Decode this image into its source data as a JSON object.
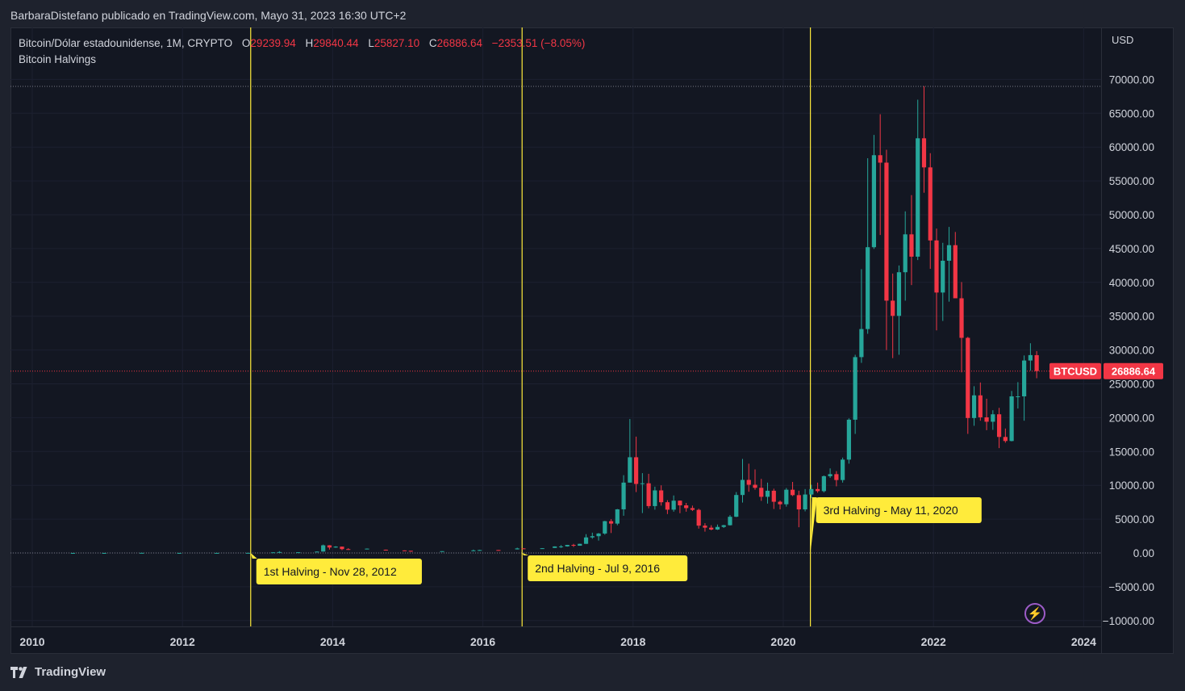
{
  "header": {
    "publisher": "BarbaraDistefano publicado en TradingView.com, Mayo 31, 2023 16:30 UTC+2"
  },
  "legend": {
    "symbol": "Bitcoin/Dólar estadounidense, 1M, CRYPTO",
    "open_label": "O",
    "open": "29239.94",
    "high_label": "H",
    "high": "29840.44",
    "low_label": "L",
    "low": "25827.10",
    "close_label": "C",
    "close": "26886.64",
    "change": "−2353.51 (−8.05%)",
    "indicator": "Bitcoin Halvings"
  },
  "price_axis": {
    "currency": "USD",
    "ticks": [
      "70000.00",
      "65000.00",
      "60000.00",
      "55000.00",
      "50000.00",
      "45000.00",
      "40000.00",
      "35000.00",
      "30000.00",
      "25000.00",
      "20000.00",
      "15000.00",
      "10000.00",
      "5000.00",
      "0.00",
      "−5000.00",
      "−10000.00"
    ]
  },
  "price_tag": {
    "symbol": "BTCUSD",
    "value": "26886.64"
  },
  "time_axis": {
    "ticks": [
      "2010",
      "2012",
      "2014",
      "2016",
      "2018",
      "2020",
      "2022",
      "2024"
    ]
  },
  "halvings": [
    {
      "label": "1st Halving - Nov 28, 2012",
      "date": "2012-11-28"
    },
    {
      "label": "2nd Halving - Jul 9, 2016",
      "date": "2016-07-09"
    },
    {
      "label": "3rd Halving - May 11, 2020",
      "date": "2020-05-11"
    }
  ],
  "colors": {
    "up": "#26a69a",
    "down": "#f23645",
    "halving": "#ffeb3b",
    "background": "#131722",
    "grid": "#1f2430"
  },
  "brand": {
    "name": "TradingView"
  },
  "chart_data": {
    "type": "candlestick",
    "title": "Bitcoin/Dólar estadounidense, 1M, CRYPTO",
    "interval": "1M",
    "ylabel": "USD",
    "ylim": [
      -10000,
      70000
    ],
    "xlim": [
      "2009-10",
      "2024-06"
    ],
    "grid": true,
    "series": [
      {
        "name": "BTCUSD",
        "candles": [
          [
            "2010-07",
            0.05,
            0.1,
            0.05,
            0.07
          ],
          [
            "2010-12",
            0.2,
            0.3,
            0.2,
            0.3
          ],
          [
            "2011-06",
            9,
            31,
            9,
            17
          ],
          [
            "2011-12",
            3,
            4,
            2,
            5
          ],
          [
            "2012-06",
            5,
            7,
            5,
            6.7
          ],
          [
            "2012-11",
            11,
            13,
            10,
            12.5
          ],
          [
            "2013-03",
            34,
            95,
            33,
            93
          ],
          [
            "2013-04",
            93,
            266,
            50,
            139
          ],
          [
            "2013-07",
            97,
            110,
            65,
            106
          ],
          [
            "2013-10",
            140,
            220,
            130,
            206
          ],
          [
            "2013-11",
            206,
            1240,
            200,
            1130
          ],
          [
            "2013-12",
            1130,
            1160,
            500,
            805
          ],
          [
            "2014-01",
            805,
            1000,
            760,
            935
          ],
          [
            "2014-02",
            935,
            950,
            420,
            570
          ],
          [
            "2014-03",
            570,
            700,
            450,
            458
          ],
          [
            "2014-06",
            630,
            670,
            540,
            640
          ],
          [
            "2014-09",
            480,
            500,
            370,
            387
          ],
          [
            "2014-12",
            375,
            385,
            300,
            320
          ],
          [
            "2015-01",
            320,
            320,
            165,
            218
          ],
          [
            "2015-06",
            230,
            265,
            215,
            264
          ],
          [
            "2015-11",
            310,
            500,
            310,
            378
          ],
          [
            "2015-12",
            378,
            470,
            350,
            430
          ],
          [
            "2016-03",
            435,
            440,
            390,
            416
          ],
          [
            "2016-06",
            530,
            780,
            520,
            673
          ],
          [
            "2016-07",
            673,
            700,
            600,
            624
          ],
          [
            "2016-10",
            610,
            720,
            600,
            700
          ],
          [
            "2016-12",
            745,
            980,
            740,
            963
          ],
          [
            "2017-01",
            963,
            1150,
            750,
            970
          ],
          [
            "2017-02",
            970,
            1200,
            930,
            1190
          ],
          [
            "2017-03",
            1190,
            1350,
            890,
            1070
          ],
          [
            "2017-04",
            1070,
            1370,
            1070,
            1350
          ],
          [
            "2017-05",
            1350,
            2780,
            1340,
            2300
          ],
          [
            "2017-06",
            2300,
            3000,
            2100,
            2480
          ],
          [
            "2017-07",
            2480,
            2950,
            1830,
            2875
          ],
          [
            "2017-08",
            2875,
            4750,
            2700,
            4700
          ],
          [
            "2017-09",
            4700,
            5000,
            2950,
            4340
          ],
          [
            "2017-10",
            4340,
            6500,
            4100,
            6450
          ],
          [
            "2017-11",
            6450,
            11500,
            5500,
            10400
          ],
          [
            "2017-12",
            10400,
            19800,
            10400,
            14150
          ],
          [
            "2018-01",
            14150,
            17200,
            9000,
            10200
          ],
          [
            "2018-02",
            10200,
            11800,
            5900,
            10300
          ],
          [
            "2018-03",
            10300,
            11700,
            6600,
            6930
          ],
          [
            "2018-04",
            6930,
            9800,
            6400,
            9250
          ],
          [
            "2018-05",
            9250,
            10000,
            7000,
            7500
          ],
          [
            "2018-06",
            7500,
            7800,
            5750,
            6400
          ],
          [
            "2018-07",
            6400,
            8500,
            6100,
            7730
          ],
          [
            "2018-08",
            7730,
            7760,
            5880,
            7040
          ],
          [
            "2018-09",
            7040,
            7400,
            6100,
            6630
          ],
          [
            "2018-10",
            6630,
            7000,
            6200,
            6370
          ],
          [
            "2018-11",
            6370,
            6550,
            3600,
            4040
          ],
          [
            "2018-12",
            4040,
            4400,
            3150,
            3740
          ],
          [
            "2019-01",
            3740,
            4100,
            3350,
            3460
          ],
          [
            "2019-02",
            3460,
            4200,
            3400,
            3850
          ],
          [
            "2019-03",
            3850,
            4150,
            3700,
            4100
          ],
          [
            "2019-04",
            4100,
            5600,
            4050,
            5350
          ],
          [
            "2019-05",
            5350,
            9000,
            5300,
            8570
          ],
          [
            "2019-06",
            8570,
            13900,
            7450,
            10800
          ],
          [
            "2019-07",
            10800,
            13200,
            9050,
            10080
          ],
          [
            "2019-08",
            10080,
            12350,
            9350,
            9630
          ],
          [
            "2019-09",
            9630,
            10950,
            7700,
            8300
          ],
          [
            "2019-10",
            8300,
            10400,
            7300,
            9200
          ],
          [
            "2019-11",
            9200,
            9500,
            6500,
            7570
          ],
          [
            "2019-12",
            7570,
            7750,
            6440,
            7200
          ],
          [
            "2020-01",
            7200,
            9600,
            6850,
            9350
          ],
          [
            "2020-02",
            9350,
            10500,
            8400,
            8550
          ],
          [
            "2020-03",
            8550,
            9200,
            3800,
            6440
          ],
          [
            "2020-04",
            6440,
            9450,
            6150,
            8640
          ],
          [
            "2020-05",
            8640,
            10080,
            8100,
            9450
          ],
          [
            "2020-06",
            9450,
            10400,
            8900,
            9140
          ],
          [
            "2020-07",
            9140,
            11450,
            8950,
            11350
          ],
          [
            "2020-08",
            11350,
            12500,
            11100,
            11650
          ],
          [
            "2020-09",
            11650,
            12100,
            9850,
            10780
          ],
          [
            "2020-10",
            10780,
            14100,
            10400,
            13800
          ],
          [
            "2020-11",
            13800,
            19900,
            13200,
            19700
          ],
          [
            "2020-12",
            19700,
            29300,
            17600,
            28950
          ],
          [
            "2021-01",
            28950,
            41950,
            28100,
            33100
          ],
          [
            "2021-02",
            33100,
            58350,
            32400,
            45200
          ],
          [
            "2021-03",
            45200,
            61800,
            44950,
            58800
          ],
          [
            "2021-04",
            58800,
            64850,
            47000,
            57700
          ],
          [
            "2021-05",
            57700,
            59600,
            30000,
            37300
          ],
          [
            "2021-06",
            37300,
            41300,
            28800,
            35050
          ],
          [
            "2021-07",
            35050,
            42500,
            29300,
            41500
          ],
          [
            "2021-08",
            41500,
            50500,
            37300,
            47100
          ],
          [
            "2021-09",
            47100,
            52900,
            39600,
            43800
          ],
          [
            "2021-10",
            43800,
            67000,
            43300,
            61300
          ],
          [
            "2021-11",
            61300,
            69000,
            53250,
            57000
          ],
          [
            "2021-12",
            57000,
            59100,
            42000,
            46200
          ],
          [
            "2022-01",
            46200,
            47950,
            32900,
            38500
          ],
          [
            "2022-02",
            38500,
            45850,
            34300,
            43200
          ],
          [
            "2022-03",
            43200,
            48200,
            37150,
            45500
          ],
          [
            "2022-04",
            45500,
            47450,
            37700,
            37650
          ],
          [
            "2022-05",
            37650,
            40050,
            26700,
            31800
          ],
          [
            "2022-06",
            31800,
            31950,
            17600,
            19950
          ],
          [
            "2022-07",
            19950,
            24650,
            18800,
            23300
          ],
          [
            "2022-08",
            23300,
            25200,
            19550,
            20050
          ],
          [
            "2022-09",
            20050,
            22800,
            18150,
            19400
          ],
          [
            "2022-10",
            19400,
            21100,
            18200,
            20500
          ],
          [
            "2022-11",
            20500,
            21450,
            15500,
            17150
          ],
          [
            "2022-12",
            17150,
            18400,
            16300,
            16550
          ],
          [
            "2023-01",
            16550,
            23950,
            16500,
            23150
          ],
          [
            "2023-02",
            23150,
            25250,
            21350,
            23150
          ],
          [
            "2023-03",
            23150,
            29200,
            19550,
            28450
          ],
          [
            "2023-04",
            28450,
            31000,
            26950,
            29250
          ],
          [
            "2023-05",
            29239.94,
            29840.44,
            25827.1,
            26886.64
          ]
        ]
      }
    ]
  }
}
